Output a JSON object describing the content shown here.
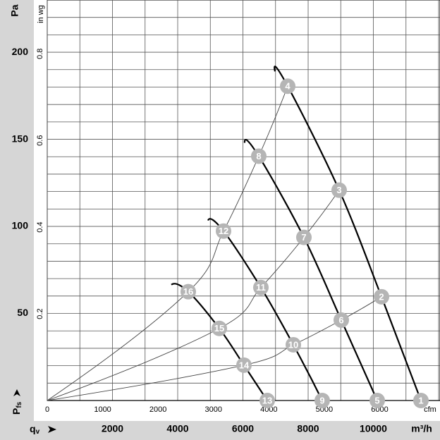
{
  "chart_data": {
    "type": "line",
    "y_axis_unit": "Pa",
    "y2_axis_unit": "in wg",
    "x_axis_unit": "m³/h",
    "x2_axis_unit": "cfm",
    "y_axis_label": {
      "symbol": "P",
      "subscript": "fs"
    },
    "x_axis_label": {
      "symbol": "q",
      "subscript": "v"
    },
    "xlim": [
      0,
      12043
    ],
    "xticks": [
      2000,
      4000,
      6000,
      8000,
      10000
    ],
    "x2lim": [
      0,
      7088
    ],
    "x2ticks": [
      0,
      1000,
      2000,
      3000,
      4000,
      5000,
      6000
    ],
    "ylim": [
      0,
      230
    ],
    "yticks": [
      50,
      100,
      150,
      200
    ],
    "y2lim": [
      0,
      0.924
    ],
    "y2ticks": [
      0.2,
      0.4,
      0.6,
      0.8
    ],
    "x_grid": [
      0,
      1000,
      2000,
      3000,
      4000,
      5000,
      6000,
      7000,
      8000,
      9000,
      10000,
      11000,
      12000
    ],
    "y_grid": [
      0,
      10,
      20,
      30,
      40,
      50,
      60,
      70,
      80,
      90,
      100,
      110,
      120,
      130,
      140,
      150,
      160,
      170,
      180,
      190,
      200,
      210,
      220
    ],
    "fan_curves": [
      {
        "color": "#000000",
        "x": [
          6984,
          7373,
          8951,
          10249,
          11459
        ],
        "values": [
          189,
          180.5,
          120.8,
          59.6,
          0
        ]
      },
      {
        "color": "#000000",
        "x": [
          6054,
          6486,
          7870,
          9016,
          10119
        ],
        "values": [
          148,
          140.3,
          93.7,
          46.2,
          0
        ]
      },
      {
        "color": "#000000",
        "x": [
          4930,
          5405,
          6551,
          7546,
          8432
        ],
        "values": [
          103.4,
          97.3,
          64.9,
          32.0,
          0
        ]
      },
      {
        "color": "#000000",
        "x": [
          3805,
          4324,
          5276,
          6032,
          6746
        ],
        "values": [
          66.5,
          62.5,
          41.4,
          20.3,
          0
        ]
      }
    ],
    "system_curves": [
      {
        "color": "#444444",
        "x": [
          0,
          4324,
          5405,
          6486,
          7373
        ],
        "values": [
          0,
          62.5,
          97.3,
          140.3,
          180.5
        ]
      },
      {
        "color": "#444444",
        "x": [
          0,
          5276,
          6551,
          7870,
          8951
        ],
        "values": [
          0,
          41.4,
          64.9,
          93.7,
          120.8
        ]
      },
      {
        "color": "#444444",
        "x": [
          0,
          6032,
          7546,
          9016,
          10249
        ],
        "values": [
          0,
          20.3,
          32.0,
          46.2,
          59.6
        ]
      }
    ],
    "points": {
      "color": "#b5b5b5",
      "labels": [
        "1",
        "2",
        "3",
        "4",
        "5",
        "6",
        "7",
        "8",
        "9",
        "10",
        "11",
        "12",
        "13",
        "14",
        "15",
        "16"
      ],
      "x": [
        11459,
        10249,
        8951,
        7373,
        10119,
        9016,
        7870,
        6486,
        8432,
        7546,
        6551,
        5405,
        6746,
        6032,
        5276,
        4324
      ],
      "values": [
        0,
        59.6,
        120.8,
        180.5,
        0,
        46.2,
        93.7,
        140.3,
        0,
        32.0,
        64.9,
        97.3,
        0,
        20.3,
        41.4,
        62.5
      ]
    }
  }
}
